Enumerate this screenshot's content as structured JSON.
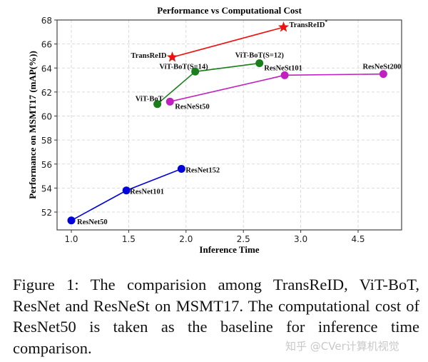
{
  "chart_data": {
    "type": "line",
    "title": "Performance vs Computational Cost",
    "xlabel": "Inference Time",
    "ylabel": "Performance on MSMT17 (mAP(%))",
    "x_ticks": [
      1.0,
      1.5,
      2.0,
      2.5,
      3.0,
      4.5
    ],
    "x_tick_labels": [
      "1.0",
      "1.5",
      "2.0",
      "2.5",
      "3.0",
      "4.5"
    ],
    "y_ticks": [
      52,
      54,
      56,
      58,
      60,
      62,
      64,
      66,
      68
    ],
    "ylim": [
      50.5,
      68.3
    ],
    "grid": true,
    "series": [
      {
        "color": "#0000dd",
        "marker": "circle",
        "points": [
          {
            "label": "ResNet50",
            "x": 1.0,
            "y": 51.3
          },
          {
            "label": "ResNet101",
            "x": 1.48,
            "y": 53.8
          },
          {
            "label": "ResNet152",
            "x": 1.96,
            "y": 55.6
          }
        ]
      },
      {
        "color": "#1a7f1a",
        "marker": "circle",
        "points": [
          {
            "label": "ViT-BoT",
            "x": 1.75,
            "y": 61.0
          },
          {
            "label": "ViT-BoT(S=14)",
            "x": 2.08,
            "y": 63.7
          },
          {
            "label": "ViT-BoT(S=12)",
            "x": 2.64,
            "y": 64.4
          }
        ]
      },
      {
        "color": "#c020c0",
        "marker": "circle",
        "points": [
          {
            "label": "ResNeSt50",
            "x": 1.86,
            "y": 61.2
          },
          {
            "label": "ResNeSt101",
            "x": 2.86,
            "y": 63.4
          },
          {
            "label": "ResNeSt200",
            "x": 4.72,
            "y": 63.5
          }
        ]
      },
      {
        "color": "#ee1111",
        "marker": "star",
        "points": [
          {
            "label": "TransReID",
            "x": 1.88,
            "y": 64.9
          },
          {
            "label": "TransReID*",
            "x": 2.85,
            "y": 67.4
          }
        ]
      }
    ]
  },
  "caption": "Figure 1: The comparision among TransReID, ViT-BoT, ResNet and ResNeSt on MSMT17. The computational cost of ResNet50 is taken as the baseline for inference time comparison.",
  "watermark": "知乎 @CVer计算机视觉"
}
